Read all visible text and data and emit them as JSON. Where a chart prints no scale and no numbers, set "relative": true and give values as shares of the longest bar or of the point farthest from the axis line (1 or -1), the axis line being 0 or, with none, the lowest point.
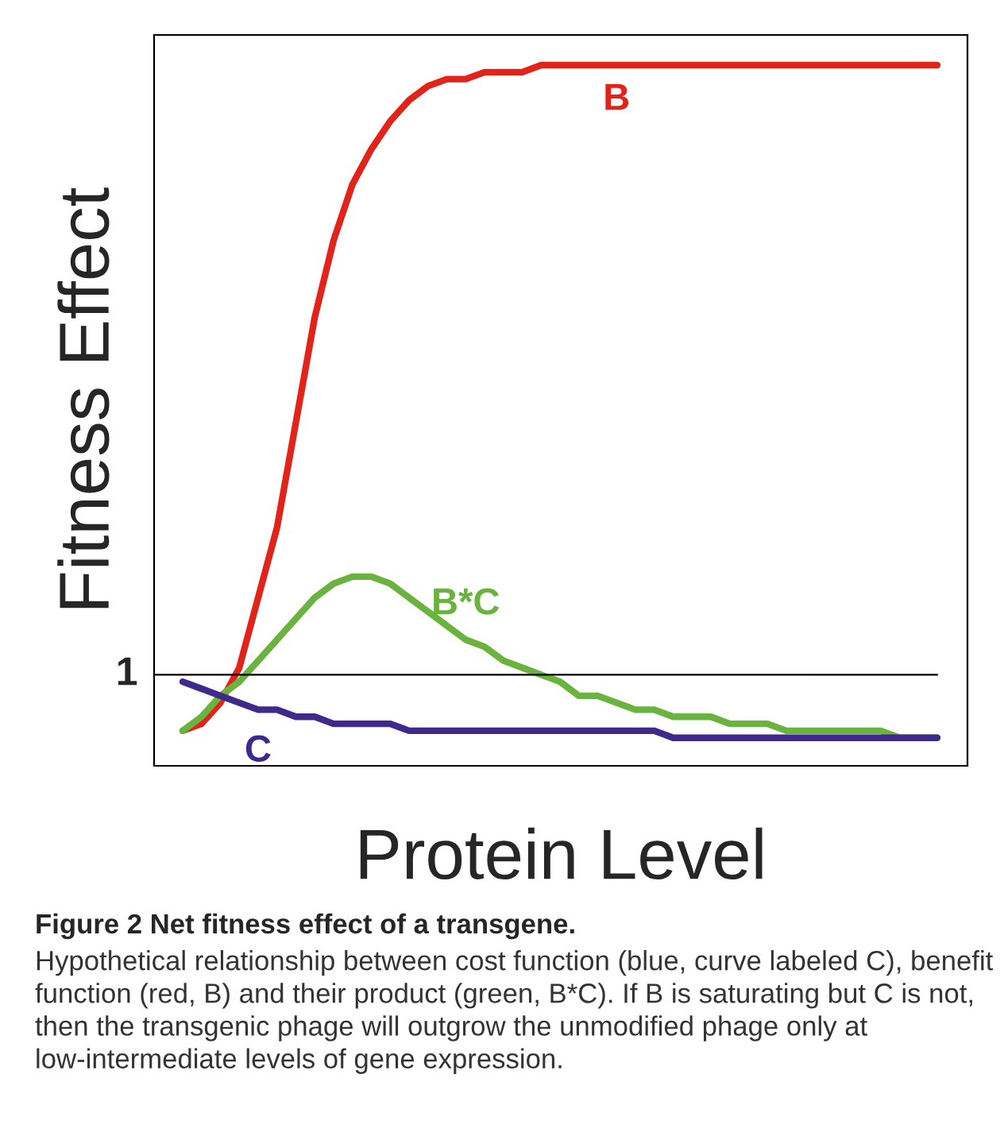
{
  "chart_data": {
    "type": "line",
    "relative": true,
    "xlabel": "Protein Level",
    "ylabel": "Fitness Effect",
    "title": "Figure 2 Net fitness effect of a transgene.",
    "annotations": [
      "1",
      "Hypothetical relationship between cost function (blue, curve labeled C), benefit function (red, B) and their product (green, B*C). If B is saturating but C is not, then the transgenic phage will outgrow the unmodified phage only at low-intermediate levels of gene expression."
    ],
    "categories": [
      null,
      null,
      null,
      null,
      null,
      null,
      null,
      null,
      null,
      null,
      null,
      null,
      null,
      null,
      null,
      null,
      null,
      null,
      null,
      null,
      null,
      null,
      null,
      null,
      null,
      null,
      null,
      null,
      null,
      null,
      null,
      null,
      null,
      null,
      null,
      null,
      null,
      null,
      null,
      null,
      null
    ],
    "series": [
      {
        "name": "B",
        "color": "#e2231a",
        "values": [
          0.05,
          0.06,
          0.09,
          0.14,
          0.24,
          0.34,
          0.49,
          0.64,
          0.75,
          0.83,
          0.88,
          0.92,
          0.95,
          0.97,
          0.98,
          0.98,
          0.99,
          0.99,
          0.99,
          1,
          1,
          1,
          1,
          1,
          1,
          1,
          1,
          1,
          1,
          1,
          1,
          1,
          1,
          1,
          1,
          1,
          1,
          1,
          1,
          1,
          1
        ]
      },
      {
        "name": "B*C",
        "color": "#6ab33e",
        "values": [
          0.05,
          0.07,
          0.1,
          0.12,
          0.15,
          0.18,
          0.21,
          0.24,
          0.26,
          0.27,
          0.27,
          0.26,
          0.24,
          0.22,
          0.2,
          0.18,
          0.17,
          0.15,
          0.14,
          0.13,
          0.12,
          0.1,
          0.1,
          0.09,
          0.08,
          0.08,
          0.07,
          0.07,
          0.07,
          0.06,
          0.06,
          0.06,
          0.05,
          0.05,
          0.05,
          0.05,
          0.05,
          0.05,
          0.04,
          0.04,
          0.04
        ]
      },
      {
        "name": "C",
        "color": "#3f2a8c",
        "values": [
          0.12,
          0.11,
          0.1,
          0.09,
          0.08,
          0.08,
          0.07,
          0.07,
          0.06,
          0.06,
          0.06,
          0.06,
          0.05,
          0.05,
          0.05,
          0.05,
          0.05,
          0.05,
          0.05,
          0.05,
          0.05,
          0.05,
          0.05,
          0.05,
          0.05,
          0.05,
          0.04,
          0.04,
          0.04,
          0.04,
          0.04,
          0.04,
          0.04,
          0.04,
          0.04,
          0.04,
          0.04,
          0.04,
          0.04,
          0.04,
          0.04
        ]
      }
    ],
    "ref_lines": [
      {
        "axis": "y",
        "value": 0.13,
        "color": "#000000"
      }
    ]
  }
}
